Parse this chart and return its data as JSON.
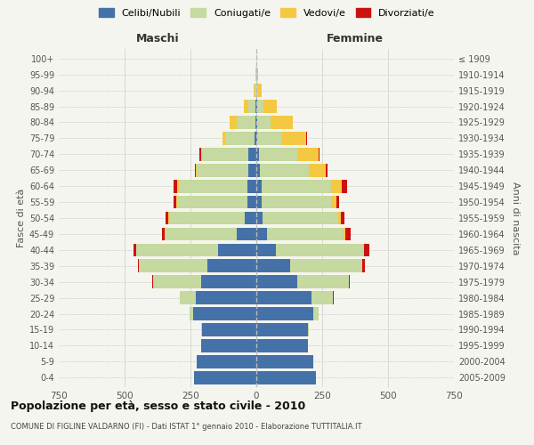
{
  "age_groups": [
    "0-4",
    "5-9",
    "10-14",
    "15-19",
    "20-24",
    "25-29",
    "30-34",
    "35-39",
    "40-44",
    "45-49",
    "50-54",
    "55-59",
    "60-64",
    "65-69",
    "70-74",
    "75-79",
    "80-84",
    "85-89",
    "90-94",
    "95-99",
    "100+"
  ],
  "birth_years": [
    "2005-2009",
    "2000-2004",
    "1995-1999",
    "1990-1994",
    "1985-1989",
    "1980-1984",
    "1975-1979",
    "1970-1974",
    "1965-1969",
    "1960-1964",
    "1955-1959",
    "1950-1954",
    "1945-1949",
    "1940-1944",
    "1935-1939",
    "1930-1934",
    "1925-1929",
    "1920-1924",
    "1915-1919",
    "1910-1914",
    "≤ 1909"
  ],
  "male": {
    "celibi": [
      235,
      225,
      210,
      205,
      240,
      230,
      210,
      185,
      145,
      75,
      45,
      35,
      35,
      30,
      30,
      8,
      5,
      2,
      1,
      0,
      0
    ],
    "coniugati": [
      0,
      0,
      1,
      4,
      15,
      60,
      180,
      260,
      310,
      270,
      285,
      265,
      260,
      195,
      175,
      110,
      70,
      30,
      5,
      2,
      0
    ],
    "vedovi": [
      0,
      0,
      0,
      0,
      0,
      0,
      1,
      1,
      2,
      2,
      3,
      4,
      5,
      4,
      5,
      10,
      25,
      15,
      5,
      2,
      0
    ],
    "divorziati": [
      0,
      0,
      0,
      0,
      0,
      1,
      3,
      5,
      10,
      10,
      10,
      10,
      15,
      5,
      5,
      2,
      0,
      0,
      0,
      0,
      0
    ]
  },
  "female": {
    "nubili": [
      225,
      215,
      195,
      195,
      215,
      210,
      155,
      130,
      75,
      40,
      25,
      20,
      20,
      15,
      10,
      5,
      3,
      2,
      1,
      0,
      0
    ],
    "coniugate": [
      0,
      0,
      1,
      5,
      20,
      80,
      195,
      270,
      330,
      290,
      285,
      265,
      265,
      185,
      145,
      90,
      50,
      25,
      5,
      2,
      0
    ],
    "vedove": [
      0,
      0,
      0,
      0,
      0,
      1,
      1,
      2,
      5,
      8,
      10,
      20,
      40,
      65,
      80,
      95,
      85,
      50,
      15,
      5,
      0
    ],
    "divorziate": [
      0,
      0,
      0,
      0,
      0,
      2,
      5,
      10,
      20,
      20,
      15,
      10,
      20,
      5,
      5,
      2,
      0,
      0,
      0,
      0,
      0
    ]
  },
  "colors": {
    "celibi": "#4472a8",
    "coniugati": "#c5d9a0",
    "vedovi": "#f5c842",
    "divorziati": "#cc1111"
  },
  "title_main": "Popolazione per età, sesso e stato civile - 2010",
  "title_sub": "COMUNE DI FIGLINE VALDARNO (FI) - Dati ISTAT 1° gennaio 2010 - Elaborazione TUTTITALIA.IT",
  "xlabel_left": "Maschi",
  "xlabel_right": "Femmine",
  "ylabel_left": "Fasce di età",
  "ylabel_right": "Anni di nascita",
  "xlim": 750,
  "legend_labels": [
    "Celibi/Nubili",
    "Coniugati/e",
    "Vedovi/e",
    "Divorziati/e"
  ],
  "bg_color": "#f5f5f0",
  "grid_color": "#cccccc"
}
